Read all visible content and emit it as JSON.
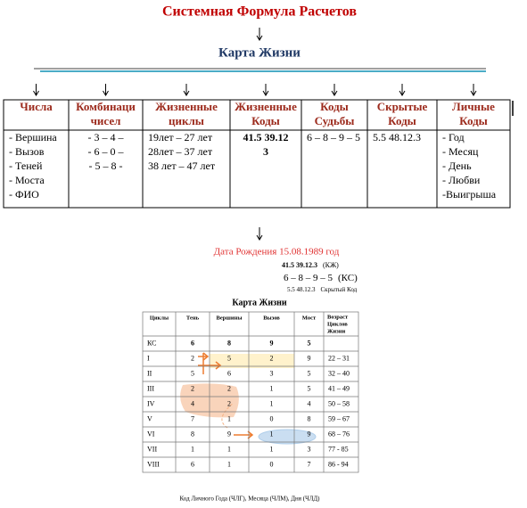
{
  "header": {
    "title": "Системная Формула Расчетов",
    "subtitle": "Карта Жизни"
  },
  "table": {
    "headers": [
      [
        "Числа"
      ],
      [
        "Комбинаци",
        "чисел"
      ],
      [
        "Жизненные",
        "циклы"
      ],
      [
        "Жизненные",
        "Коды"
      ],
      [
        "Коды",
        "Судьбы"
      ],
      [
        "Скрытые",
        "Коды"
      ],
      [
        "Личные",
        "Коды"
      ]
    ],
    "cells": [
      [
        "- Вершина",
        "- Вызов",
        "- Теней",
        "- Моста",
        "- ФИО"
      ],
      [
        "- 3 – 4 –",
        "- 6 – 0 –",
        "- 5 – 8 -"
      ],
      [
        "19лет – 27 лет",
        "28лет – 37 лет",
        "38 лет – 47 лет"
      ],
      [
        "41.5   39.12",
        "3"
      ],
      [
        "6 – 8 – 9 – 5"
      ],
      [
        "5.5   48.12.3"
      ],
      [
        "- Год",
        "- Месяц",
        "- День",
        "- Любви",
        "-Выигрыша"
      ]
    ]
  },
  "birth": "Дата Рождения 15.08.1989 год",
  "codes": [
    {
      "code": "41.5   39.12.3",
      "label": "(КЖ)"
    },
    {
      "code": "6 – 8 – 9 – 5",
      "label": "(КС)"
    },
    {
      "code": "5.5   48.12.3",
      "label": "Скрытый Код"
    }
  ],
  "life_map": {
    "title": "Карта Жизни",
    "headers": [
      [
        "Циклы"
      ],
      [
        "Тень"
      ],
      [
        "Вершины"
      ],
      [
        "Вызов"
      ],
      [
        "Мост"
      ],
      [
        "Возраст",
        "Циклов",
        "Жизни"
      ]
    ],
    "rows": [
      [
        "КС",
        "6",
        "8",
        "9",
        "5",
        null
      ],
      [
        "I",
        "2",
        "5",
        "2",
        "9",
        "22 – 31"
      ],
      [
        "II",
        "5",
        "6",
        "3",
        "5",
        "32 – 40"
      ],
      [
        "III",
        "2",
        "2",
        "1",
        "5",
        "41 – 49"
      ],
      [
        "IV",
        "4",
        "2",
        "1",
        "4",
        "50 – 58"
      ],
      [
        "V",
        "7",
        "1",
        "0",
        "8",
        "59 – 67"
      ],
      [
        "VI",
        "8",
        "9",
        "1",
        "9",
        "68 – 76"
      ],
      [
        "VII",
        "1",
        "1",
        "1",
        "3",
        "77 - 85"
      ],
      [
        "VIII",
        "6",
        "1",
        "0",
        "7",
        "86 - 94"
      ]
    ]
  },
  "footer": "Код Личного Года (ЧЛГ), Месяца (ЧЛМ), Дня (ЧЛД)"
}
